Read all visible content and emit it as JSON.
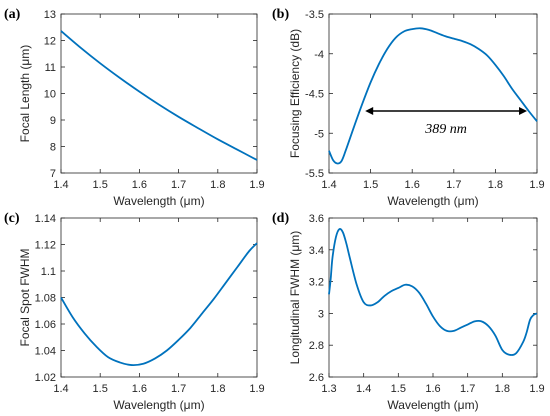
{
  "chart_data": [
    {
      "type": "line",
      "panel_label": "(a)",
      "xlabel": "Wavelength (μm)",
      "ylabel": "Focal Length (μm)",
      "xlim": [
        1.4,
        1.9
      ],
      "ylim": [
        7,
        13
      ],
      "xticks": [
        1.4,
        1.5,
        1.6,
        1.7,
        1.8,
        1.9
      ],
      "yticks": [
        7,
        8,
        9,
        10,
        11,
        12,
        13
      ],
      "xtick_labels": [
        "1.4",
        "1.5",
        "1.6",
        "1.7",
        "1.8",
        "1.9"
      ],
      "ytick_labels": [
        "7",
        "8",
        "9",
        "10",
        "11",
        "12",
        "13"
      ],
      "color": "#0072BD",
      "x": [
        1.4,
        1.45,
        1.5,
        1.55,
        1.6,
        1.65,
        1.7,
        1.75,
        1.8,
        1.85,
        1.9
      ],
      "y": [
        12.36,
        11.73,
        11.14,
        10.59,
        10.07,
        9.58,
        9.12,
        8.69,
        8.27,
        7.88,
        7.49
      ]
    },
    {
      "type": "line",
      "panel_label": "(b)",
      "xlabel": "Wavelength (μm)",
      "ylabel": "Focusing Efficiency (dB)",
      "xlim": [
        1.4,
        1.9
      ],
      "ylim": [
        -5.5,
        -3.5
      ],
      "xticks": [
        1.4,
        1.5,
        1.6,
        1.7,
        1.8,
        1.9
      ],
      "yticks": [
        -5.5,
        -5,
        -4.5,
        -4,
        -3.5
      ],
      "xtick_labels": [
        "1.4",
        "1.5",
        "1.6",
        "1.7",
        "1.8",
        "1.9"
      ],
      "ytick_labels": [
        "-5.5",
        "-5",
        "-4.5",
        "-4",
        "-3.5"
      ],
      "color": "#0072BD",
      "x": [
        1.4,
        1.41,
        1.42,
        1.43,
        1.44,
        1.46,
        1.48,
        1.5,
        1.52,
        1.54,
        1.56,
        1.58,
        1.6,
        1.62,
        1.64,
        1.66,
        1.68,
        1.7,
        1.72,
        1.74,
        1.76,
        1.78,
        1.8,
        1.82,
        1.84,
        1.86,
        1.88,
        1.9
      ],
      "y": [
        -5.22,
        -5.34,
        -5.38,
        -5.35,
        -5.22,
        -4.92,
        -4.63,
        -4.36,
        -4.13,
        -3.94,
        -3.8,
        -3.72,
        -3.69,
        -3.68,
        -3.7,
        -3.74,
        -3.78,
        -3.81,
        -3.84,
        -3.88,
        -3.94,
        -4.02,
        -4.14,
        -4.28,
        -4.44,
        -4.58,
        -4.72,
        -4.85
      ],
      "annotation": {
        "text": "389 nm",
        "x_start": 1.487,
        "x_end": 1.876,
        "y": -4.72
      }
    },
    {
      "type": "line",
      "panel_label": "(c)",
      "xlabel": "Wavelength (μm)",
      "ylabel": "Focal Spot FWHM",
      "xlim": [
        1.4,
        1.9
      ],
      "ylim": [
        1.02,
        1.14
      ],
      "xticks": [
        1.4,
        1.5,
        1.6,
        1.7,
        1.8,
        1.9
      ],
      "yticks": [
        1.02,
        1.04,
        1.06,
        1.08,
        1.1,
        1.12,
        1.14
      ],
      "xtick_labels": [
        "1.4",
        "1.5",
        "1.6",
        "1.7",
        "1.8",
        "1.9"
      ],
      "ytick_labels": [
        "1.02",
        "1.04",
        "1.06",
        "1.08",
        "1.1",
        "1.12",
        "1.14"
      ],
      "color": "#0072BD",
      "x": [
        1.4,
        1.43,
        1.46,
        1.49,
        1.52,
        1.55,
        1.58,
        1.61,
        1.64,
        1.67,
        1.7,
        1.73,
        1.76,
        1.79,
        1.82,
        1.85,
        1.88,
        1.9
      ],
      "y": [
        1.08,
        1.065,
        1.053,
        1.043,
        1.035,
        1.031,
        1.029,
        1.03,
        1.034,
        1.04,
        1.048,
        1.057,
        1.068,
        1.079,
        1.091,
        1.103,
        1.115,
        1.121
      ]
    },
    {
      "type": "line",
      "panel_label": "(d)",
      "xlabel": "Wavelength (μm)",
      "ylabel": "Longitudinal FWHM (μm)",
      "xlim": [
        1.3,
        1.9
      ],
      "ylim": [
        2.6,
        3.6
      ],
      "xticks": [
        1.3,
        1.4,
        1.5,
        1.6,
        1.7,
        1.8,
        1.9
      ],
      "yticks": [
        2.6,
        2.8,
        3,
        3.2,
        3.4,
        3.6
      ],
      "xtick_labels": [
        "1.3",
        "1.4",
        "1.5",
        "1.6",
        "1.7",
        "1.8",
        "1.9"
      ],
      "ytick_labels": [
        "2.6",
        "2.8",
        "3",
        "3.2",
        "3.4",
        "3.6"
      ],
      "color": "#0072BD",
      "x": [
        1.3,
        1.305,
        1.31,
        1.32,
        1.33,
        1.34,
        1.35,
        1.36,
        1.38,
        1.4,
        1.42,
        1.44,
        1.46,
        1.48,
        1.5,
        1.52,
        1.54,
        1.56,
        1.58,
        1.6,
        1.62,
        1.64,
        1.66,
        1.68,
        1.7,
        1.72,
        1.74,
        1.76,
        1.78,
        1.8,
        1.82,
        1.84,
        1.86,
        1.87,
        1.88,
        1.89,
        1.9
      ],
      "y": [
        3.12,
        3.22,
        3.35,
        3.48,
        3.53,
        3.51,
        3.44,
        3.35,
        3.18,
        3.07,
        3.05,
        3.07,
        3.11,
        3.14,
        3.16,
        3.18,
        3.17,
        3.13,
        3.06,
        2.98,
        2.92,
        2.89,
        2.89,
        2.91,
        2.93,
        2.95,
        2.95,
        2.92,
        2.86,
        2.77,
        2.74,
        2.75,
        2.82,
        2.88,
        2.96,
        2.99,
        3.0
      ]
    }
  ]
}
